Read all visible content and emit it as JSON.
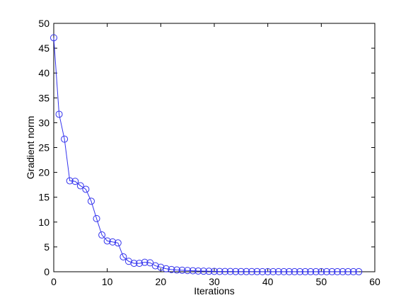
{
  "chart_data": {
    "type": "line",
    "title": "",
    "xlabel": "Iterations",
    "ylabel": "Gradient norm",
    "xlim": [
      0,
      60
    ],
    "ylim": [
      0,
      50
    ],
    "xticks": [
      0,
      10,
      20,
      30,
      40,
      50,
      60
    ],
    "yticks": [
      0,
      5,
      10,
      15,
      20,
      25,
      30,
      35,
      40,
      45,
      50
    ],
    "grid": false,
    "marker": "circle",
    "series_color": "#3333ee",
    "series": [
      {
        "x": [
          0,
          1,
          2,
          3,
          4,
          5,
          6,
          7,
          8,
          9,
          10,
          11,
          12,
          13,
          14,
          15,
          16,
          17,
          18,
          19,
          20,
          21,
          22,
          23,
          24,
          25,
          26,
          27,
          28,
          29,
          30,
          31,
          32,
          33,
          34,
          35,
          36,
          37,
          38,
          39,
          40,
          41,
          42,
          43,
          44,
          45,
          46,
          47,
          48,
          49,
          50,
          51,
          52,
          53,
          54,
          55,
          56,
          57
        ],
        "values": [
          47.1,
          31.7,
          26.7,
          18.3,
          18.2,
          17.3,
          16.6,
          14.2,
          10.7,
          7.4,
          6.2,
          6.0,
          5.8,
          3.0,
          2.1,
          1.7,
          1.7,
          1.9,
          1.8,
          1.2,
          0.9,
          0.6,
          0.45,
          0.35,
          0.3,
          0.25,
          0.2,
          0.15,
          0.12,
          0.1,
          0.08,
          0.06,
          0.05,
          0.05,
          0.04,
          0.04,
          0.03,
          0.03,
          0.03,
          0.02,
          0.02,
          0.02,
          0.02,
          0.02,
          0.01,
          0.01,
          0.01,
          0.01,
          0.01,
          0.01,
          0.01,
          0.01,
          0.01,
          0.01,
          0.01,
          0.01,
          0.01,
          0.01
        ]
      }
    ]
  }
}
